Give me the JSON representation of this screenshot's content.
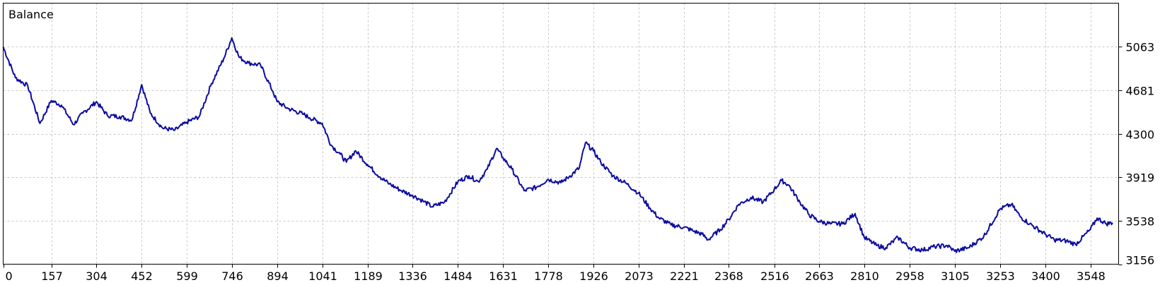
{
  "chart_data": {
    "type": "line",
    "title": "Balance",
    "xlabel": "",
    "ylabel": "",
    "xlim": [
      0,
      3640
    ],
    "ylim": [
      3156,
      5444
    ],
    "x_ticks": [
      0,
      157,
      304,
      452,
      599,
      746,
      894,
      1041,
      1189,
      1336,
      1484,
      1631,
      1778,
      1926,
      2073,
      2221,
      2368,
      2516,
      2663,
      2810,
      2958,
      3105,
      3253,
      3400,
      3548
    ],
    "y_ticks": [
      3156,
      3538,
      3919,
      4300,
      4681,
      5063
    ],
    "grid": true,
    "legend": "none",
    "colors": {
      "line": "#0b0ba0",
      "grid": "#c8c8c8",
      "frame": "#000000",
      "background": "#ffffff"
    },
    "series": [
      {
        "name": "Balance",
        "x": [
          0,
          40,
          80,
          120,
          157,
          190,
          230,
          260,
          304,
          340,
          380,
          420,
          452,
          480,
          520,
          560,
          599,
          640,
          680,
          720,
          746,
          770,
          800,
          840,
          880,
          894,
          930,
          980,
          1000,
          1041,
          1070,
          1100,
          1120,
          1150,
          1189,
          1230,
          1260,
          1300,
          1336,
          1370,
          1400,
          1440,
          1484,
          1520,
          1550,
          1580,
          1610,
          1631,
          1660,
          1700,
          1740,
          1778,
          1820,
          1850,
          1880,
          1900,
          1926,
          1950,
          1990,
          2030,
          2073,
          2110,
          2140,
          2180,
          2221,
          2250,
          2280,
          2300,
          2340,
          2368,
          2400,
          2440,
          2480,
          2516,
          2540,
          2563,
          2600,
          2630,
          2663,
          2700,
          2740,
          2780,
          2810,
          2850,
          2880,
          2920,
          2958,
          3000,
          3040,
          3080,
          3105,
          3150,
          3200,
          3253,
          3290,
          3320,
          3350,
          3400,
          3430,
          3470,
          3500,
          3548,
          3570,
          3600,
          3620
        ],
        "y": [
          5060,
          4790,
          4720,
          4390,
          4590,
          4550,
          4380,
          4480,
          4580,
          4460,
          4450,
          4420,
          4730,
          4480,
          4350,
          4330,
          4400,
          4450,
          4740,
          4960,
          5140,
          4970,
          4920,
          4900,
          4670,
          4580,
          4520,
          4470,
          4440,
          4390,
          4200,
          4120,
          4050,
          4150,
          4030,
          3920,
          3860,
          3800,
          3760,
          3710,
          3660,
          3700,
          3880,
          3930,
          3880,
          3990,
          4170,
          4090,
          3990,
          3800,
          3830,
          3900,
          3870,
          3930,
          4000,
          4220,
          4150,
          4050,
          3930,
          3870,
          3780,
          3650,
          3560,
          3500,
          3480,
          3450,
          3420,
          3370,
          3460,
          3550,
          3680,
          3740,
          3700,
          3810,
          3890,
          3850,
          3700,
          3590,
          3530,
          3510,
          3510,
          3600,
          3390,
          3320,
          3300,
          3390,
          3300,
          3280,
          3310,
          3320,
          3270,
          3300,
          3400,
          3640,
          3680,
          3570,
          3510,
          3420,
          3370,
          3360,
          3330,
          3460,
          3560,
          3510,
          3520
        ]
      }
    ]
  }
}
